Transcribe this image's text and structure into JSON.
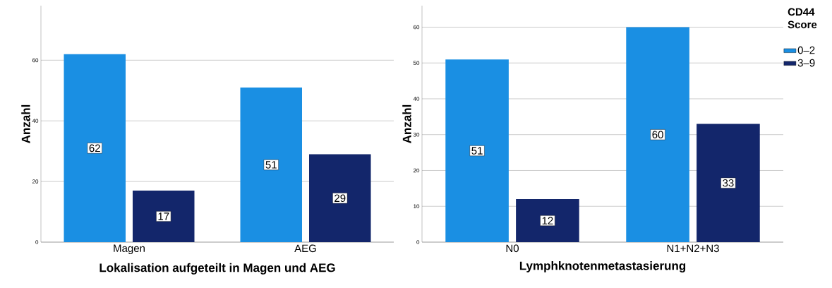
{
  "chart_data": [
    {
      "type": "bar",
      "xlabel": "Lokalisation aufgeteilt in Magen und AEG",
      "ylabel": "Anzahl",
      "categories": [
        "Magen",
        "AEG"
      ],
      "series": [
        {
          "color": "#1a8fe3",
          "values": [
            62,
            51
          ]
        },
        {
          "color": "#13266b",
          "values": [
            17,
            29
          ]
        }
      ],
      "ylim": [
        0,
        78
      ],
      "yticks": [
        0,
        20,
        40,
        60
      ],
      "grid": "y",
      "data_labels": true
    },
    {
      "type": "bar",
      "xlabel": "Lymphknotenmetastasierung",
      "ylabel": "Anzahl",
      "categories": [
        "N0",
        "N1+N2+N3"
      ],
      "legend_title": "CD44 Score",
      "series": [
        {
          "name": "0–2",
          "color": "#1a8fe3",
          "values": [
            51,
            60
          ]
        },
        {
          "name": "3–9",
          "color": "#13266b",
          "values": [
            12,
            33
          ]
        }
      ],
      "ylim": [
        0,
        66
      ],
      "yticks": [
        0,
        10,
        20,
        30,
        40,
        50,
        60
      ],
      "grid": "y",
      "legend": "right",
      "data_labels": true
    }
  ]
}
